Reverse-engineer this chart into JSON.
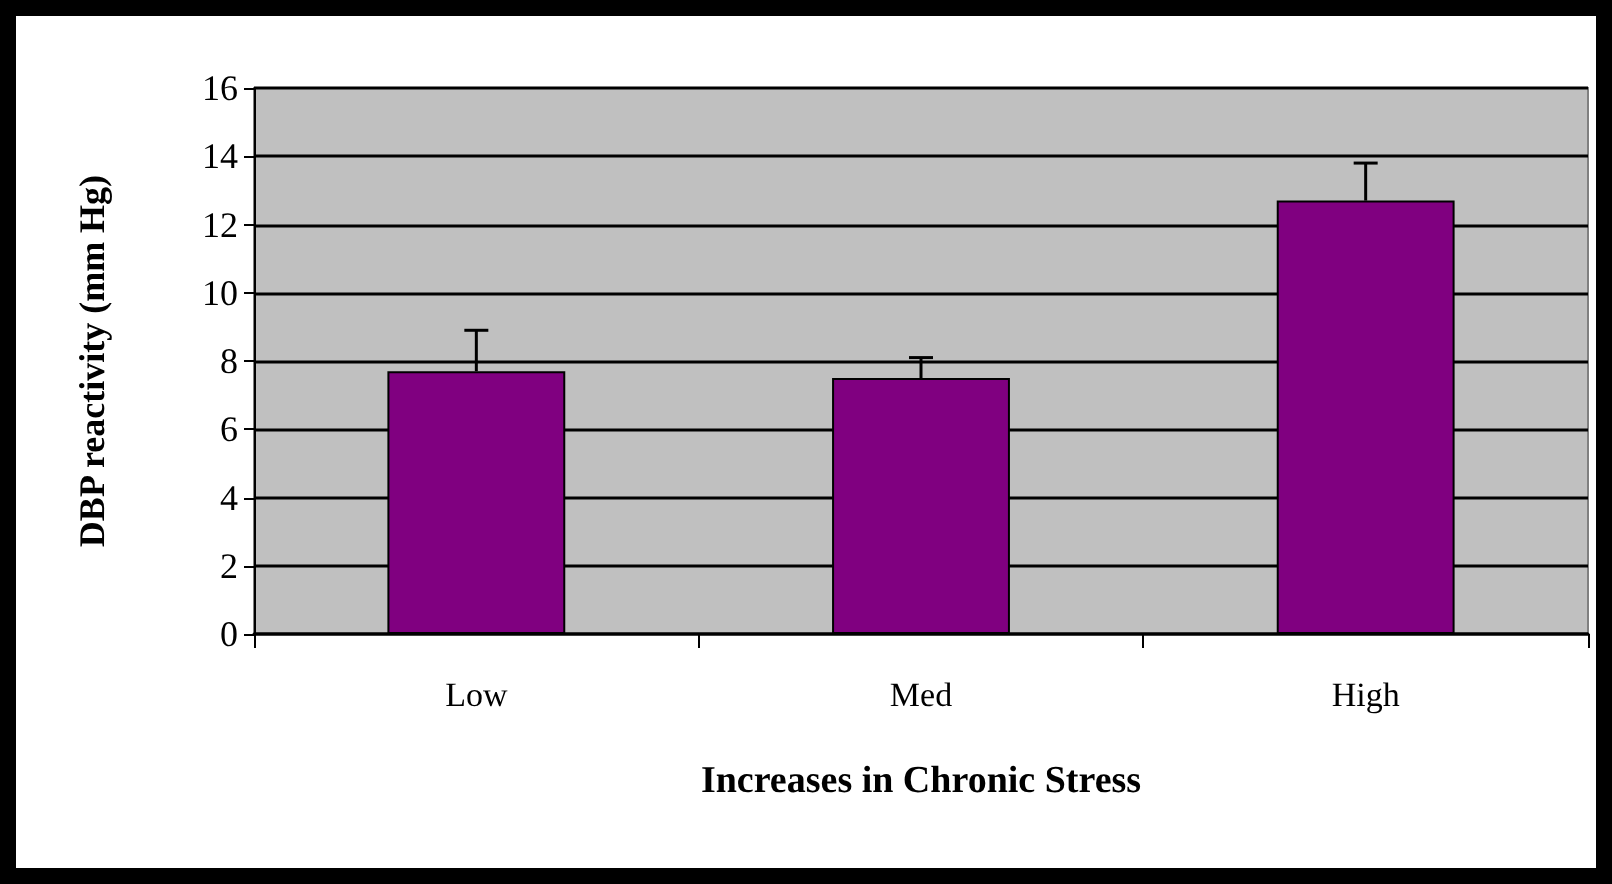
{
  "chart_data": {
    "type": "bar",
    "xlabel": "Increases in Chronic Stress",
    "ylabel": "DBP reactivity (mm Hg)",
    "categories": [
      "Low",
      "Med",
      "High"
    ],
    "values": [
      7.7,
      7.5,
      12.7
    ],
    "errors": [
      [
        7.7,
        8.9
      ],
      [
        7.5,
        8.1
      ],
      [
        12.7,
        13.8
      ]
    ],
    "color": "#800080",
    "ylim": [
      0,
      16
    ],
    "yticks": [
      0,
      2,
      4,
      6,
      8,
      10,
      12,
      14,
      16
    ],
    "grid": "y"
  }
}
